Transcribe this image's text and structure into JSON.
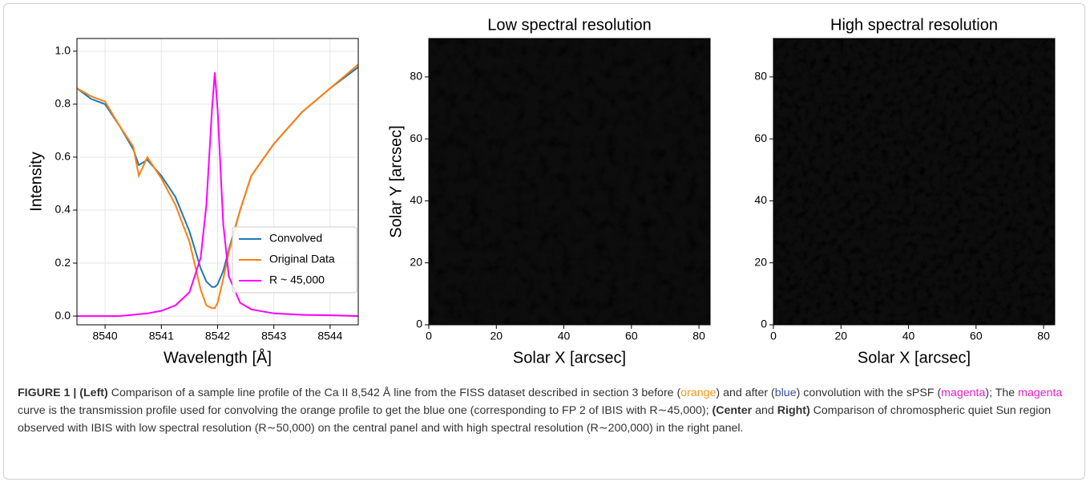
{
  "chart_data": [
    {
      "type": "line",
      "ylabel": "Intensity",
      "xlabel": "Wavelength [Å]",
      "x": [
        8539.5,
        8539.75,
        8540.0,
        8540.25,
        8540.5,
        8540.6,
        8540.75,
        8541.0,
        8541.25,
        8541.5,
        8541.7,
        8541.8,
        8541.9,
        8541.95,
        8542.0,
        8542.1,
        8542.2,
        8542.4,
        8542.6,
        8543.0,
        8543.5,
        8544.0,
        8544.5
      ],
      "series": [
        {
          "name": "Convolved",
          "color": "#1f77b4",
          "values": [
            0.86,
            0.82,
            0.8,
            0.72,
            0.63,
            0.57,
            0.59,
            0.53,
            0.45,
            0.32,
            0.18,
            0.13,
            0.11,
            0.11,
            0.12,
            0.17,
            0.25,
            0.4,
            0.53,
            0.65,
            0.77,
            0.86,
            0.94
          ]
        },
        {
          "name": "Original Data",
          "color": "#ff7f0e",
          "values": [
            0.86,
            0.83,
            0.81,
            0.72,
            0.64,
            0.53,
            0.6,
            0.52,
            0.42,
            0.28,
            0.1,
            0.04,
            0.03,
            0.03,
            0.05,
            0.14,
            0.24,
            0.4,
            0.53,
            0.65,
            0.77,
            0.86,
            0.95
          ]
        },
        {
          "name": "R ~ 45,000",
          "color": "#ff00ff",
          "values": [
            0.0,
            0.0,
            0.0,
            0.0,
            0.005,
            0.007,
            0.01,
            0.02,
            0.04,
            0.09,
            0.22,
            0.42,
            0.78,
            0.92,
            0.78,
            0.35,
            0.15,
            0.05,
            0.025,
            0.01,
            0.005,
            0.003,
            0.0
          ]
        }
      ],
      "xlim": [
        8539.5,
        8544.5
      ],
      "xticks": [
        8540,
        8541,
        8542,
        8543,
        8544
      ],
      "ylim": [
        -0.033,
        1.048
      ],
      "yticks": [
        {
          "value": 0,
          "label": "0.0"
        },
        0.2,
        0.4,
        0.6,
        0.8,
        {
          "value": 1,
          "label": "1.0"
        }
      ],
      "grid": true,
      "legend": "lower right"
    },
    {
      "type": "image",
      "title": "Low spectral resolution",
      "xlabel": "Solar X [arcsec]",
      "ylabel": "Solar Y [arcsec]",
      "xlim": [
        0,
        83.3
      ],
      "xticks": [
        0,
        20,
        40,
        60,
        80
      ],
      "ylim": [
        0,
        92.4
      ],
      "yticks": [
        0,
        20,
        40,
        60,
        80
      ]
    },
    {
      "type": "image",
      "title": "High spectral resolution",
      "xlabel": "Solar X [arcsec]",
      "xlim": [
        0,
        83.3
      ],
      "xticks": [
        0,
        20,
        40,
        60,
        80
      ],
      "ylim": [
        0,
        92.4
      ],
      "yticks": [
        0,
        20,
        40,
        60,
        80
      ]
    }
  ],
  "caption": [
    "FIGURE 1 | (Left)",
    " Comparison of a sample line profile of the Ca II 8,542 Å line from the FISS dataset described in section 3 before (",
    "orange",
    ") and after (",
    "blue",
    ") convolution with the sPSF (",
    "magenta",
    "); The ",
    "magenta",
    " curve is the transmission profile used for convolving the orange profile to get the blue one (corresponding to FP 2 of IBIS with R∼45,000); ",
    "(Center",
    " and ",
    "Right)",
    " Comparison of chromospheric quiet Sun region observed with IBIS with low spectral resolution (R∼50,000) on the central panel and with high spectral resolution (R∼200,000) in the right panel."
  ]
}
